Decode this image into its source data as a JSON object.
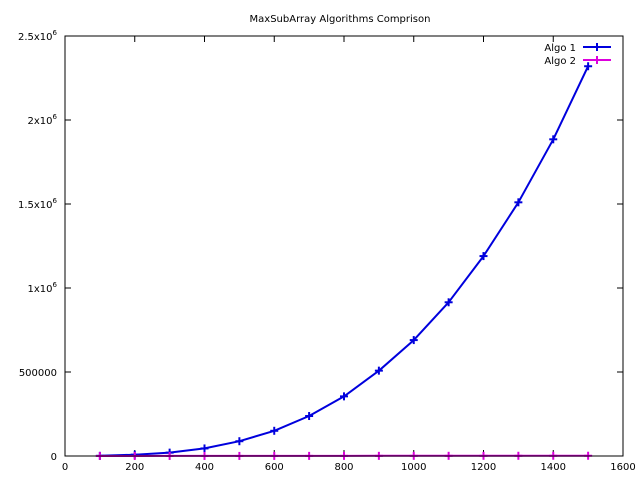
{
  "chart_data": {
    "type": "line",
    "title": "MaxSubArray Algorithms Comprison",
    "xlabel": "",
    "ylabel": "",
    "xlim": [
      0,
      1600
    ],
    "ylim": [
      0,
      2500000
    ],
    "grid": false,
    "legend_position": "top-right",
    "x_ticks": [
      {
        "value": 0,
        "label": "0"
      },
      {
        "value": 200,
        "label": "200"
      },
      {
        "value": 400,
        "label": "400"
      },
      {
        "value": 600,
        "label": "600"
      },
      {
        "value": 800,
        "label": "800"
      },
      {
        "value": 1000,
        "label": "1000"
      },
      {
        "value": 1200,
        "label": "1200"
      },
      {
        "value": 1400,
        "label": "1400"
      },
      {
        "value": 1600,
        "label": "1600"
      }
    ],
    "y_ticks": [
      {
        "value": 0,
        "mantissa": "0",
        "exponent": ""
      },
      {
        "value": 500000,
        "mantissa": "500000",
        "exponent": ""
      },
      {
        "value": 1000000,
        "mantissa": "1x10",
        "exponent": "6"
      },
      {
        "value": 1500000,
        "mantissa": "1.5x10",
        "exponent": "6"
      },
      {
        "value": 2000000,
        "mantissa": "2x10",
        "exponent": "6"
      },
      {
        "value": 2500000,
        "mantissa": "2.5x10",
        "exponent": "6"
      }
    ],
    "x": [
      100,
      200,
      300,
      400,
      500,
      600,
      700,
      800,
      900,
      1000,
      1100,
      1200,
      1300,
      1400,
      1500
    ],
    "series": [
      {
        "name": "Algo 1",
        "color": "#0000dd",
        "values": [
          1000,
          8000,
          20000,
          45000,
          88000,
          150000,
          238000,
          355000,
          508000,
          690000,
          915000,
          1190000,
          1510000,
          1885000,
          2320000
        ]
      },
      {
        "name": "Algo 2",
        "color": "#dd00dd",
        "values": [
          100,
          200,
          300,
          400,
          500,
          600,
          700,
          800,
          900,
          1000,
          1100,
          1200,
          1300,
          1400,
          1500
        ]
      }
    ]
  }
}
